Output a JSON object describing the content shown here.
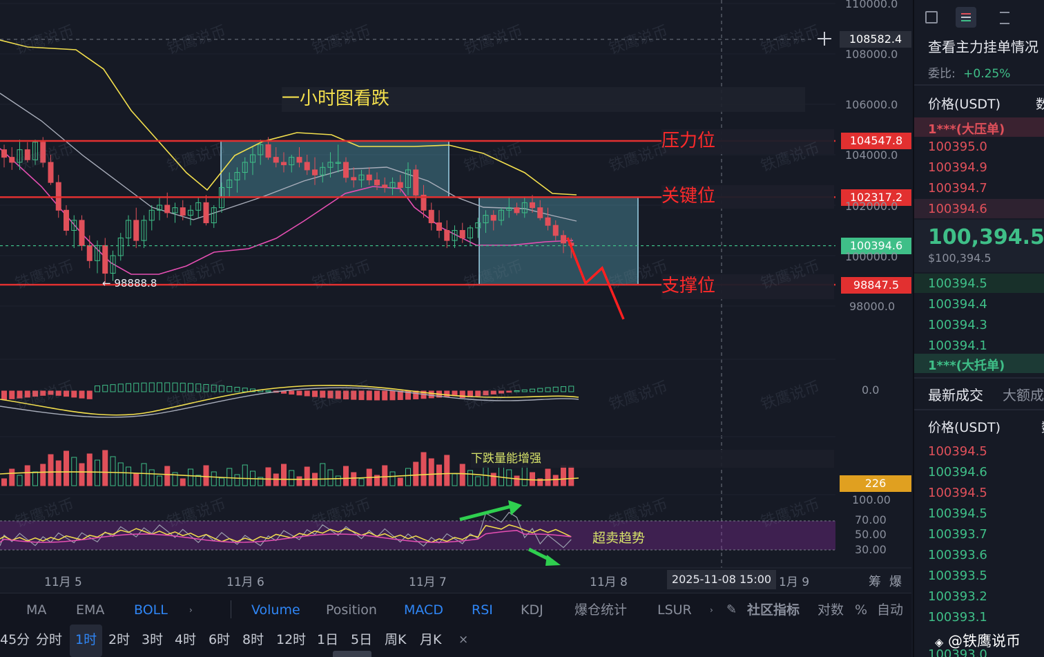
{
  "colors": {
    "up": "#3fbf88",
    "down": "#e0505a",
    "boll_upper": "#f4e04d",
    "boll_mid": "#a9aebb",
    "boll_lower": "#e64fb3",
    "level_line": "#e23030",
    "box_fill": "#5fb6c8",
    "rsi_band": "#8a2ea0",
    "current_price_bg": "#3fbf88",
    "volume_label_bg": "#e0a020"
  },
  "price_axis": {
    "ticks": [
      "110000.0",
      "108000.0",
      "106000.0",
      "104000.0",
      "102000.0",
      "100000.0",
      "98000.0"
    ],
    "crosshair_price": "108582.4",
    "macd_zero": "0.0",
    "rsi_ticks": [
      "100.00",
      "70.00",
      "50.00",
      "30.00"
    ]
  },
  "levels": [
    {
      "name": "压力位",
      "price": "104547.8",
      "value": 104547.8
    },
    {
      "name": "关键位",
      "price": "102317.2",
      "value": 102317.2
    },
    {
      "name": "支撑位",
      "price": "98847.5",
      "value": 98847.5
    }
  ],
  "current_price": {
    "label": "100394.6",
    "value": 100394.6
  },
  "low_marker": "← 98888.8",
  "annotations": {
    "title": "一小时图看跌",
    "volume_note": "下跌量能增强",
    "rsi_note": "超卖趋势",
    "volume_value": "226"
  },
  "time_axis": {
    "labels": [
      "11月 5",
      "11月 6",
      "11月 7",
      "11月 8",
      "1月 9"
    ],
    "crosshair_time": "2025-11-08 15:00",
    "right_icons": [
      "筹",
      "爆"
    ]
  },
  "watermark": "铁鹰说币",
  "indicator_tabs": [
    "MA",
    "EMA",
    "BOLL",
    "Volume",
    "Position",
    "MACD",
    "RSI",
    "KDJ",
    "爆仓统计",
    "LSUR"
  ],
  "indicator_active": [
    "BOLL",
    "Volume",
    "MACD",
    "RSI"
  ],
  "indicator_right": {
    "community": "社区指标",
    "log": "对数",
    "percent": "%",
    "auto": "自动"
  },
  "intervals": [
    "45分",
    "分时",
    "1时",
    "2时",
    "3时",
    "4时",
    "6时",
    "8时",
    "12时",
    "1日",
    "5日",
    "周K",
    "月K"
  ],
  "interval_active": "1时",
  "side_panel": {
    "title": "查看主力挂单情况",
    "ratio_label": "委比:",
    "ratio_value": "+0.25%",
    "price_header": "价格(USDT)",
    "qty_header_cut": "数",
    "big_ask_label": "1***(大压单)",
    "asks": [
      "100395.0",
      "100394.9",
      "100394.7",
      "100394.6"
    ],
    "last_price": "100,394.5",
    "last_price_usd": "$100,394.5",
    "bids": [
      "100394.5",
      "100394.4",
      "100394.3",
      "100394.1"
    ],
    "big_bid_label": "1***(大托单)",
    "trades_tab": "最新成交",
    "big_trades_tab": "大额成",
    "trades_price_header": "价格(USDT)",
    "trades": [
      {
        "p": "100394.5",
        "side": "down"
      },
      {
        "p": "100394.6",
        "side": "up"
      },
      {
        "p": "100394.5",
        "side": "down"
      },
      {
        "p": "100394.5",
        "side": "up"
      },
      {
        "p": "100393.7",
        "side": "up"
      },
      {
        "p": "100393.6",
        "side": "up"
      },
      {
        "p": "100393.5",
        "side": "up"
      },
      {
        "p": "100393.2",
        "side": "up"
      },
      {
        "p": "100393.1",
        "side": "up"
      },
      {
        "p": "100393.0",
        "side": "up"
      }
    ],
    "brand": "@铁鹰说币"
  },
  "chart_data": {
    "type": "candlestick",
    "timeframe": "1时",
    "y_range": [
      97500,
      110000
    ],
    "x_labels": [
      "11月 5",
      "11月 6",
      "11月 7",
      "11月 8"
    ],
    "candles": [
      [
        104200,
        104400,
        103500,
        103900
      ],
      [
        103900,
        104300,
        103400,
        103700
      ],
      [
        103700,
        104600,
        103400,
        104200
      ],
      [
        104200,
        104500,
        103700,
        103800
      ],
      [
        103800,
        104600,
        103600,
        104500
      ],
      [
        104500,
        104700,
        103500,
        103700
      ],
      [
        103700,
        104000,
        102800,
        102900
      ],
      [
        102900,
        103200,
        101500,
        101800
      ],
      [
        101800,
        102000,
        100800,
        101000
      ],
      [
        101000,
        101600,
        100300,
        101400
      ],
      [
        101400,
        101600,
        100200,
        100400
      ],
      [
        100400,
        100800,
        99500,
        99800
      ],
      [
        99800,
        100600,
        99300,
        100400
      ],
      [
        100400,
        100700,
        98900,
        99300
      ],
      [
        99300,
        100200,
        99000,
        100000
      ],
      [
        100000,
        100900,
        99800,
        100700
      ],
      [
        100700,
        101600,
        100400,
        101400
      ],
      [
        101400,
        101900,
        100300,
        100600
      ],
      [
        100600,
        101600,
        100300,
        101400
      ],
      [
        101400,
        102000,
        101000,
        101800
      ],
      [
        101800,
        102300,
        101400,
        102000
      ],
      [
        102000,
        102500,
        101500,
        101700
      ],
      [
        101700,
        102100,
        101300,
        101900
      ],
      [
        101900,
        102200,
        101400,
        101600
      ],
      [
        101600,
        102000,
        101200,
        101800
      ],
      [
        101800,
        102300,
        101500,
        102100
      ],
      [
        102100,
        102400,
        101200,
        101300
      ],
      [
        101300,
        102000,
        101100,
        101900
      ],
      [
        101900,
        102900,
        101700,
        102700
      ],
      [
        102700,
        103300,
        102300,
        103000
      ],
      [
        103000,
        103500,
        102500,
        103300
      ],
      [
        103300,
        103900,
        103000,
        103700
      ],
      [
        103700,
        104300,
        103200,
        104000
      ],
      [
        104000,
        104600,
        103600,
        104400
      ],
      [
        104400,
        104700,
        103800,
        103900
      ],
      [
        103900,
        104300,
        103500,
        103700
      ],
      [
        103700,
        104100,
        103300,
        103600
      ],
      [
        103600,
        104000,
        103300,
        103900
      ],
      [
        103900,
        104300,
        103500,
        103700
      ],
      [
        103700,
        104000,
        103200,
        103400
      ],
      [
        103400,
        103900,
        102800,
        103200
      ],
      [
        103200,
        103700,
        102900,
        103500
      ],
      [
        103500,
        104100,
        103100,
        103700
      ],
      [
        103700,
        104400,
        103300,
        103700
      ],
      [
        103700,
        103900,
        102900,
        103100
      ],
      [
        103100,
        103500,
        102700,
        103000
      ],
      [
        103000,
        103400,
        102700,
        103200
      ],
      [
        103200,
        103500,
        102800,
        103000
      ],
      [
        103000,
        103300,
        102600,
        102800
      ],
      [
        102800,
        103100,
        102500,
        102700
      ],
      [
        102700,
        103100,
        102400,
        102900
      ],
      [
        102900,
        103200,
        102500,
        102700
      ],
      [
        102700,
        103700,
        102400,
        103400
      ],
      [
        103400,
        103600,
        102200,
        102400
      ],
      [
        102400,
        102800,
        101500,
        101800
      ],
      [
        101800,
        102100,
        101000,
        101300
      ],
      [
        101300,
        101800,
        100700,
        101000
      ],
      [
        101000,
        101400,
        100300,
        100600
      ],
      [
        100600,
        101200,
        100300,
        101000
      ],
      [
        101000,
        101300,
        100500,
        100700
      ],
      [
        100700,
        101200,
        100400,
        101100
      ],
      [
        101100,
        101500,
        100700,
        101300
      ],
      [
        101300,
        101800,
        100900,
        101600
      ],
      [
        101600,
        101800,
        101000,
        101400
      ],
      [
        101400,
        101900,
        101200,
        101800
      ],
      [
        101800,
        102300,
        101500,
        101900
      ],
      [
        101900,
        102100,
        101600,
        101700
      ],
      [
        101700,
        102300,
        101500,
        102100
      ],
      [
        102100,
        102400,
        101700,
        101900
      ],
      [
        101900,
        102200,
        101400,
        101500
      ],
      [
        101500,
        101900,
        101000,
        101200
      ],
      [
        101200,
        101400,
        100600,
        100800
      ],
      [
        100800,
        101000,
        100100,
        100500
      ],
      [
        100500,
        100700,
        99900,
        100400
      ]
    ]
  }
}
